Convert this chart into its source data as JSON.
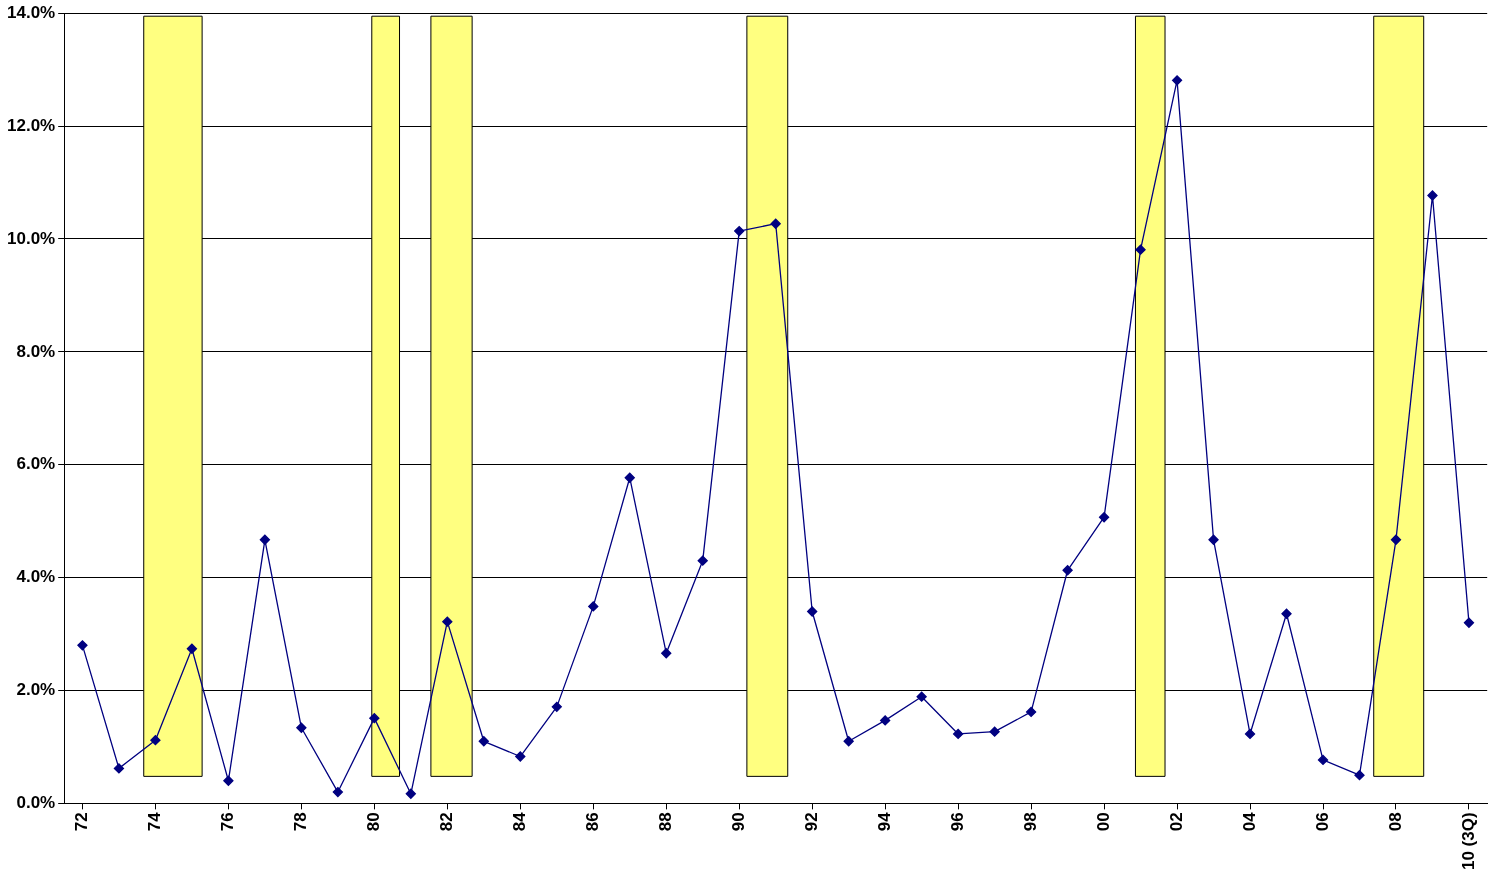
{
  "chart_data": {
    "type": "line",
    "x": [
      1972,
      1973,
      1974,
      1975,
      1976,
      1977,
      1978,
      1979,
      1980,
      1981,
      1982,
      1983,
      1984,
      1985,
      1986,
      1987,
      1988,
      1989,
      1990,
      1991,
      1992,
      1993,
      1994,
      1995,
      1996,
      1997,
      1998,
      1999,
      2000,
      2001,
      2002,
      2003,
      2004,
      2005,
      2006,
      2007,
      2008,
      2009,
      2010
    ],
    "series": [
      {
        "color": "#000080",
        "values": [
          2.8,
          0.62,
          1.12,
          2.74,
          0.4,
          4.67,
          1.34,
          0.2,
          1.51,
          0.17,
          3.22,
          1.1,
          0.83,
          1.71,
          3.49,
          5.77,
          2.66,
          4.3,
          10.14,
          10.27,
          3.4,
          1.1,
          1.47,
          1.89,
          1.23,
          1.27,
          1.62,
          4.13,
          5.07,
          9.81,
          12.81,
          4.67,
          1.23,
          3.36,
          0.77,
          0.5,
          4.67,
          10.77,
          3.2
        ]
      }
    ],
    "xlim": [
      1971.5,
      2010.5
    ],
    "xticks": [
      {
        "value": 1972,
        "label": "72"
      },
      {
        "value": 1974,
        "label": "74"
      },
      {
        "value": 1976,
        "label": "76"
      },
      {
        "value": 1978,
        "label": "78"
      },
      {
        "value": 1980,
        "label": "80"
      },
      {
        "value": 1982,
        "label": "82"
      },
      {
        "value": 1984,
        "label": "84"
      },
      {
        "value": 1986,
        "label": "86"
      },
      {
        "value": 1988,
        "label": "88"
      },
      {
        "value": 1990,
        "label": "90"
      },
      {
        "value": 1992,
        "label": "92"
      },
      {
        "value": 1994,
        "label": "94"
      },
      {
        "value": 1996,
        "label": "96"
      },
      {
        "value": 1998,
        "label": "98"
      },
      {
        "value": 2000,
        "label": "00"
      },
      {
        "value": 2002,
        "label": "02"
      },
      {
        "value": 2004,
        "label": "04"
      },
      {
        "value": 2006,
        "label": "06"
      },
      {
        "value": 2008,
        "label": "08"
      },
      {
        "value": 2010,
        "label": "10 (3Q)"
      }
    ],
    "ylim": [
      0,
      14
    ],
    "yticks": [
      {
        "value": 0,
        "label": "0.0%"
      },
      {
        "value": 2,
        "label": "2.0%"
      },
      {
        "value": 4,
        "label": "4.0%"
      },
      {
        "value": 6,
        "label": "6.0%"
      },
      {
        "value": 8,
        "label": "8.0%"
      },
      {
        "value": 10,
        "label": "10.0%"
      },
      {
        "value": 12,
        "label": "12.0%"
      },
      {
        "value": 14,
        "label": "14.0%"
      }
    ],
    "bands": [
      {
        "axis": "x",
        "from": 1973.68,
        "to": 1975.28,
        "color": "#ffff80"
      },
      {
        "axis": "x",
        "from": 1979.93,
        "to": 1980.69,
        "color": "#ffff80"
      },
      {
        "axis": "x",
        "from": 1981.55,
        "to": 1982.68,
        "color": "#ffff80"
      },
      {
        "axis": "x",
        "from": 1990.21,
        "to": 1991.33,
        "color": "#ffff80"
      },
      {
        "axis": "x",
        "from": 2000.86,
        "to": 2001.67,
        "color": "#ffff80"
      },
      {
        "axis": "x",
        "from": 2007.39,
        "to": 2008.76,
        "color": "#ffff80"
      }
    ],
    "grid": "y",
    "legend": false,
    "marker": "diamond",
    "line_style": "solid"
  }
}
